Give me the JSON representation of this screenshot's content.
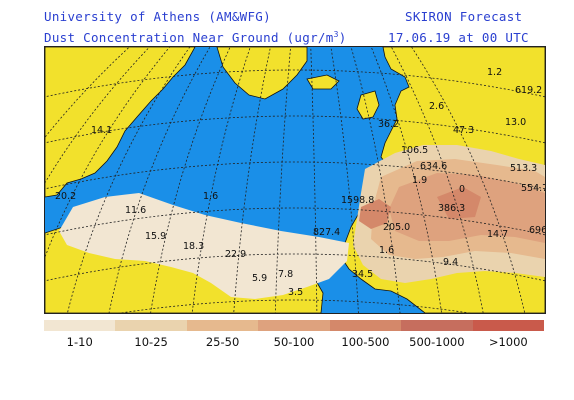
{
  "header": {
    "institution": "University of Athens (AM&WFG)",
    "forecast_name": "SKIRON Forecast",
    "product_prefix": "Dust Concentration Near Ground (ugr/m",
    "product_exp": "3",
    "product_suffix": ")",
    "datetime": "17.06.19 at 00 UTC"
  },
  "colors": {
    "ocean": "#1a8fe8",
    "land": "#f2e12c",
    "outline": "#111111",
    "grid": "#222222"
  },
  "map_labels": [
    {
      "text": "14.1"
    },
    {
      "text": "20.2"
    },
    {
      "text": "11.6"
    },
    {
      "text": "1.6"
    },
    {
      "text": "15.9"
    },
    {
      "text": "18.3"
    },
    {
      "text": "22.9"
    },
    {
      "text": "5.9"
    },
    {
      "text": "7.8"
    },
    {
      "text": "3.5"
    },
    {
      "text": "1598.8"
    },
    {
      "text": "827.4"
    },
    {
      "text": "205.0"
    },
    {
      "text": "1.6"
    },
    {
      "text": "34.5"
    },
    {
      "text": "9.4"
    },
    {
      "text": "14.7"
    },
    {
      "text": "696"
    },
    {
      "text": "386.3"
    },
    {
      "text": "0"
    },
    {
      "text": "1.9"
    },
    {
      "text": "634.6"
    },
    {
      "text": "513.3"
    },
    {
      "text": "554.7"
    },
    {
      "text": "106.5"
    },
    {
      "text": "47.3"
    },
    {
      "text": "13.0"
    },
    {
      "text": "619.2"
    },
    {
      "text": "1.2"
    },
    {
      "text": "36.2"
    },
    {
      "text": "2.6"
    }
  ],
  "legend": [
    {
      "label": "1-10",
      "color": "#f2e6d2"
    },
    {
      "label": "10-25",
      "color": "#ead3ae"
    },
    {
      "label": "25-50",
      "color": "#e6b98e"
    },
    {
      "label": "50-100",
      "color": "#dea27e"
    },
    {
      "label": "100-500",
      "color": "#d4886a"
    },
    {
      "label": "500-1000",
      "color": "#c66e5e"
    },
    {
      "label": ">1000",
      "color": "#c95a4b"
    }
  ]
}
